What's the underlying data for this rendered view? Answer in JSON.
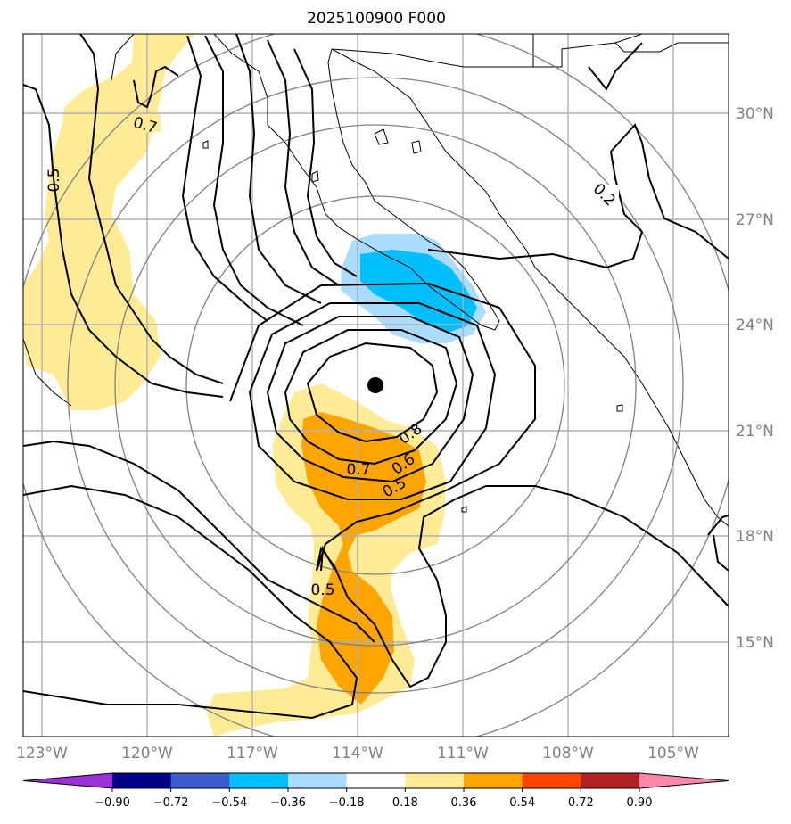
{
  "title": "2025100900 F000",
  "colors": {
    "fill_pos1": "#ffeb96",
    "fill_pos2": "#ffa500",
    "fill_neg1": "#aadcff",
    "fill_neg2": "#00bfff",
    "contour": "#000000",
    "gridline": "#b0b0b0",
    "range_ring": "#808080",
    "coast": "#000000",
    "axis_label": "#808080",
    "center_marker": "#000000"
  },
  "lat_labels": [
    "30°N",
    "27°N",
    "24°N",
    "21°N",
    "18°N",
    "15°N"
  ],
  "lon_labels": [
    "123°W",
    "120°W",
    "117°W",
    "114°W",
    "111°W",
    "108°W",
    "105°W"
  ],
  "contour_labels": [
    "0.7",
    "0.5",
    "0.2",
    "0.8",
    "0.7",
    "0.6",
    "0.5",
    "0.5"
  ],
  "colorbar": {
    "colors": [
      "#9b30d9",
      "#00008b",
      "#3a5ccc",
      "#00bfff",
      "#aadcff",
      "#ffffff",
      "#ffeb96",
      "#ffa500",
      "#ff4500",
      "#b22222",
      "#ff88aa"
    ],
    "ticks": [
      "−0.90",
      "−0.72",
      "−0.54",
      "−0.36",
      "−0.18",
      "0.18",
      "0.36",
      "0.54",
      "0.72",
      "0.90"
    ]
  },
  "storm_center": {
    "lat": 22.3,
    "lon": -113.9,
    "marker": "filled-circle"
  }
}
